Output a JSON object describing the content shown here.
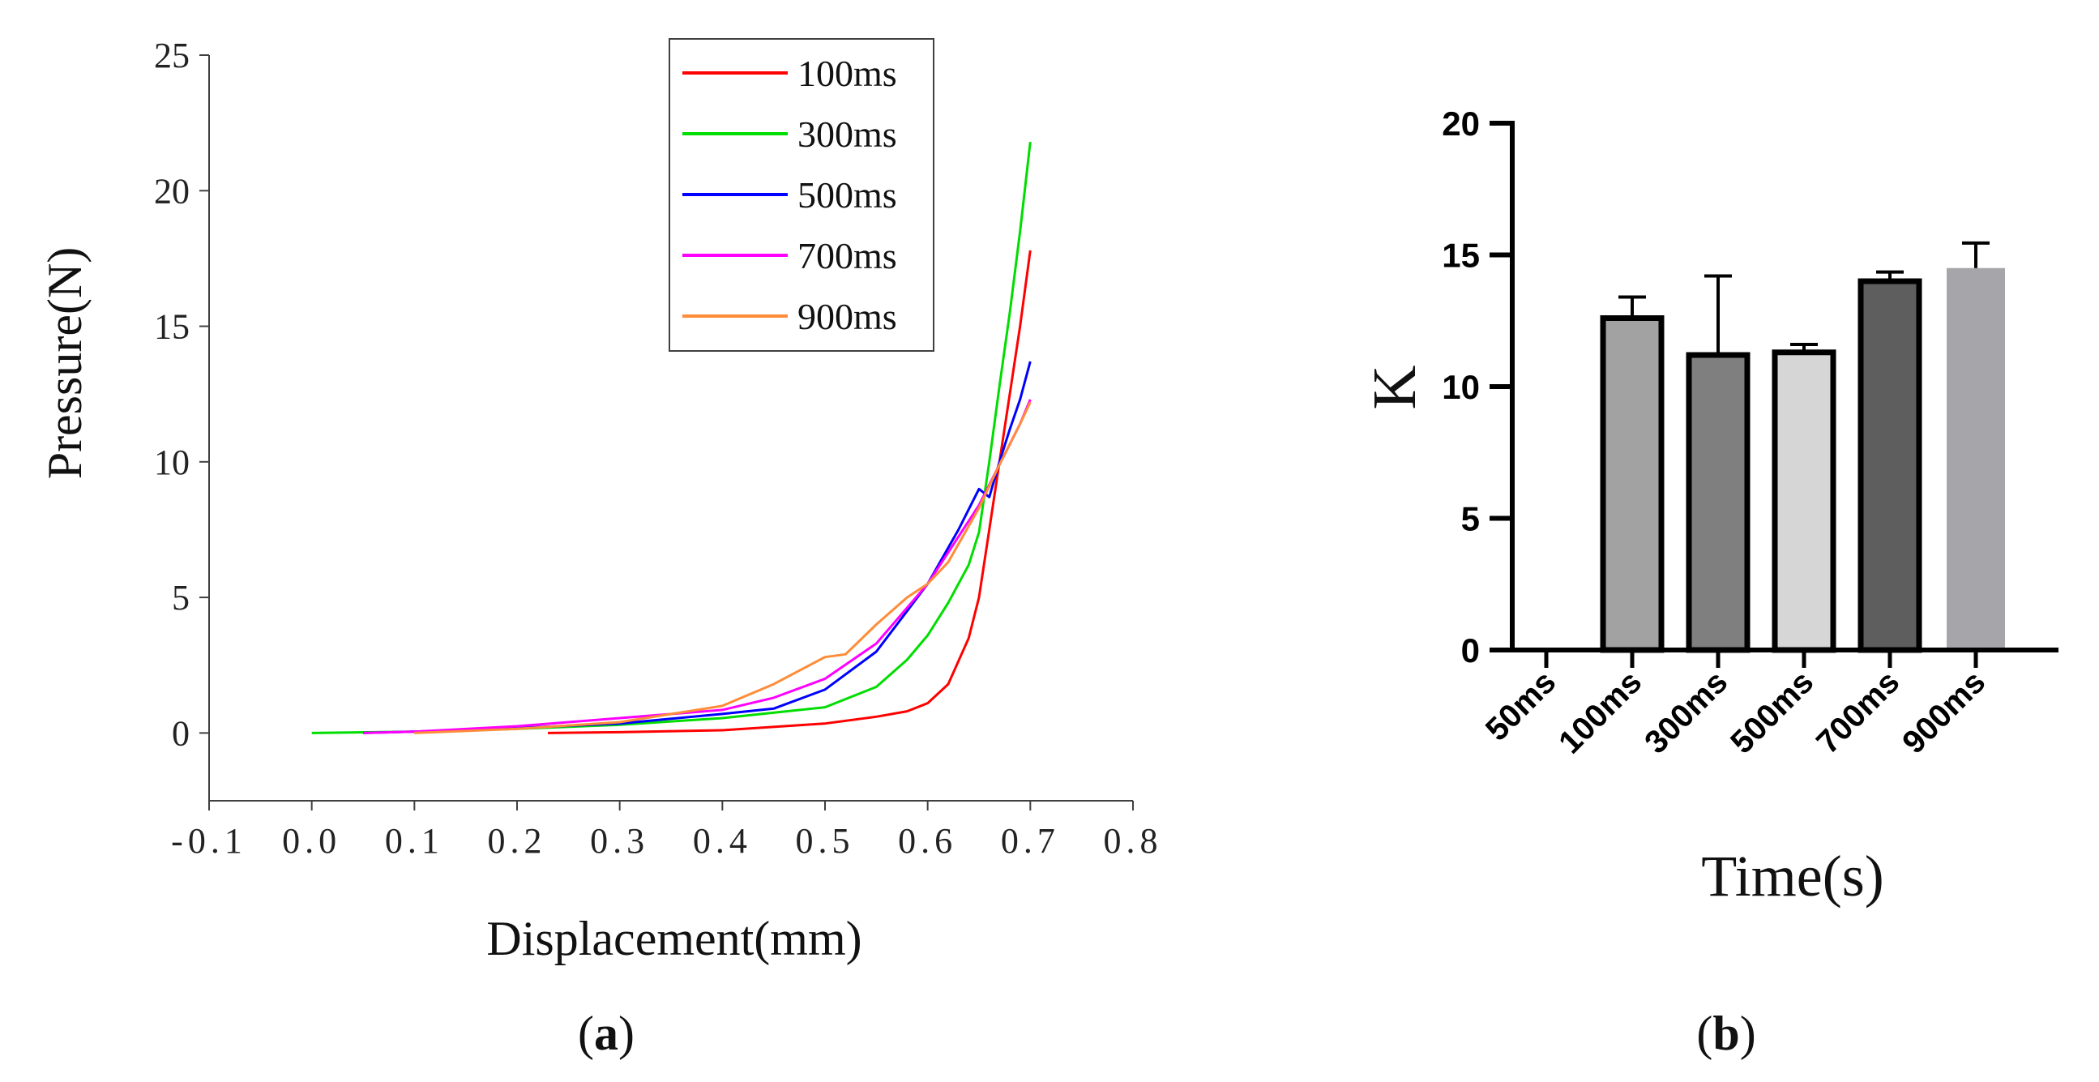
{
  "panels": {
    "a_label": "a",
    "b_label": "b"
  },
  "chart_data": [
    {
      "id": "a",
      "type": "line",
      "title": "",
      "xlabel": "Displacement(mm)",
      "ylabel": "Pressure(N)",
      "xlim": [
        -0.1,
        0.8
      ],
      "ylim": [
        -2.5,
        25
      ],
      "xticks": [
        -0.1,
        0.0,
        0.1,
        0.2,
        0.3,
        0.4,
        0.5,
        0.6,
        0.7,
        0.8
      ],
      "xtick_labels": [
        "-0.1",
        "0.0",
        "0.1",
        "0.2",
        "0.3",
        "0.4",
        "0.5",
        "0.6",
        "0.7",
        "0.8"
      ],
      "yticks": [
        0,
        5,
        10,
        15,
        20,
        25
      ],
      "ytick_labels": [
        "0",
        "5",
        "10",
        "15",
        "20",
        "25"
      ],
      "legend": "top-right",
      "series": [
        {
          "name": "100ms",
          "color": "#ff0000",
          "x": [
            0.23,
            0.3,
            0.4,
            0.5,
            0.55,
            0.58,
            0.6,
            0.62,
            0.64,
            0.65,
            0.66,
            0.67,
            0.68,
            0.69,
            0.7
          ],
          "y": [
            0,
            0.03,
            0.1,
            0.35,
            0.6,
            0.8,
            1.1,
            1.8,
            3.5,
            5.0,
            7.5,
            10.0,
            12.5,
            15.0,
            17.8
          ]
        },
        {
          "name": "300ms",
          "color": "#00dd00",
          "x": [
            0.0,
            0.1,
            0.2,
            0.3,
            0.4,
            0.5,
            0.55,
            0.58,
            0.6,
            0.62,
            0.64,
            0.65,
            0.66,
            0.67,
            0.68,
            0.69,
            0.7
          ],
          "y": [
            0,
            0.05,
            0.15,
            0.3,
            0.55,
            0.95,
            1.7,
            2.7,
            3.6,
            4.8,
            6.2,
            7.4,
            10.0,
            12.8,
            15.5,
            18.5,
            21.8
          ]
        },
        {
          "name": "500ms",
          "color": "#0000ff",
          "x": [
            0.05,
            0.1,
            0.2,
            0.3,
            0.4,
            0.45,
            0.5,
            0.55,
            0.6,
            0.63,
            0.65,
            0.66,
            0.67,
            0.68,
            0.69,
            0.7
          ],
          "y": [
            0,
            0.05,
            0.18,
            0.35,
            0.7,
            0.9,
            1.6,
            3.0,
            5.5,
            7.5,
            9.0,
            8.7,
            10.0,
            11.2,
            12.3,
            13.7
          ]
        },
        {
          "name": "700ms",
          "color": "#ff00ff",
          "x": [
            0.05,
            0.1,
            0.2,
            0.3,
            0.4,
            0.45,
            0.5,
            0.55,
            0.6,
            0.65,
            0.67,
            0.69,
            0.7
          ],
          "y": [
            0,
            0.05,
            0.25,
            0.55,
            0.85,
            1.3,
            2.0,
            3.3,
            5.5,
            8.4,
            9.9,
            11.4,
            12.3
          ]
        },
        {
          "name": "900ms",
          "color": "#ff8c38",
          "x": [
            0.1,
            0.2,
            0.3,
            0.4,
            0.45,
            0.5,
            0.52,
            0.55,
            0.58,
            0.6,
            0.62,
            0.65,
            0.67,
            0.69,
            0.7
          ],
          "y": [
            0,
            0.15,
            0.4,
            1.0,
            1.8,
            2.8,
            2.9,
            4.0,
            5.0,
            5.5,
            6.3,
            8.3,
            9.9,
            11.4,
            12.2
          ]
        }
      ]
    },
    {
      "id": "b",
      "type": "bar",
      "title": "",
      "xlabel": "Time(s)",
      "ylabel": "K",
      "ylim": [
        0,
        20
      ],
      "yticks": [
        0,
        5,
        10,
        15,
        20
      ],
      "ytick_labels": [
        "0",
        "5",
        "10",
        "15",
        "20"
      ],
      "categories": [
        "50ms",
        "100ms",
        "300ms",
        "500ms",
        "700ms",
        "900ms"
      ],
      "values": [
        0,
        12.6,
        11.2,
        11.3,
        14.0,
        14.5
      ],
      "errors": [
        0,
        0.8,
        3.0,
        0.3,
        0.35,
        0.95
      ],
      "colors": [
        "#ffffff",
        "#a2a2a2",
        "#7f7f7f",
        "#d6d6d6",
        "#5e5e5e",
        "#a6a6aa"
      ],
      "outlined": [
        false,
        true,
        true,
        true,
        true,
        false
      ]
    }
  ]
}
